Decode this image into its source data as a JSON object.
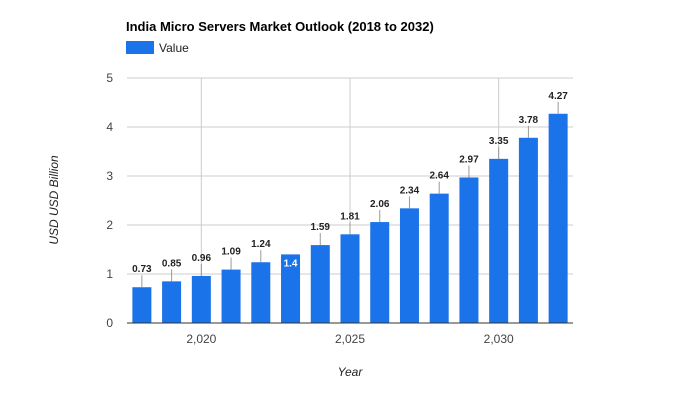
{
  "chart_data": {
    "type": "bar",
    "title": "India Micro Servers Market Outlook (2018 to 2032)",
    "xlabel": "Year",
    "ylabel": "USD USD Billion",
    "legend": {
      "entries": [
        "Value"
      ],
      "position": "top-left"
    },
    "series": [
      {
        "name": "Value",
        "color": "#1a73e8",
        "x": [
          2018,
          2019,
          2020,
          2021,
          2022,
          2023,
          2024,
          2025,
          2026,
          2027,
          2028,
          2029,
          2030,
          2031,
          2032
        ],
        "values": [
          0.73,
          0.85,
          0.96,
          1.09,
          1.24,
          1.4,
          1.59,
          1.81,
          2.06,
          2.34,
          2.64,
          2.97,
          3.35,
          3.78,
          4.27
        ],
        "labels": [
          "0.73",
          "0.85",
          "0.96",
          "1.09",
          "1.24",
          "1.4",
          "1.59",
          "1.81",
          "2.06",
          "2.34",
          "2.64",
          "2.97",
          "3.35",
          "3.78",
          "4.27"
        ]
      }
    ],
    "ylim": [
      0,
      5
    ],
    "yticks": [
      0,
      1,
      2,
      3,
      4,
      5
    ],
    "xticks": [
      2020,
      2025,
      2030
    ],
    "xtick_labels": [
      "2,020",
      "2,025",
      "2,030"
    ],
    "grid": true
  }
}
